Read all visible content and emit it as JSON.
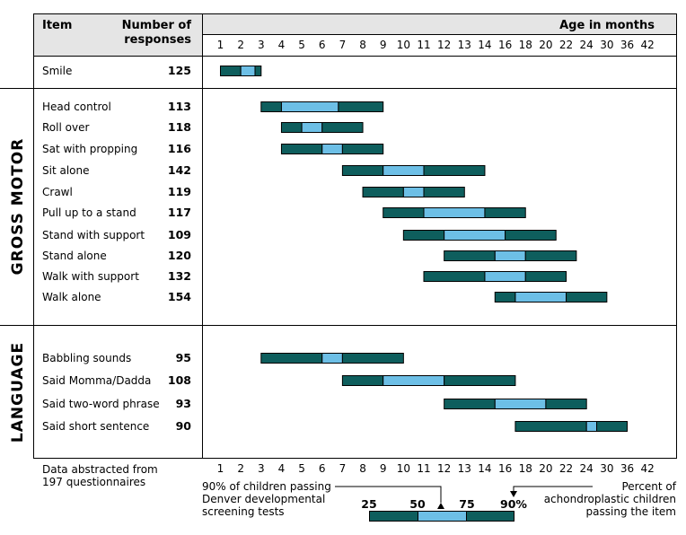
{
  "header": {
    "item": "Item",
    "responses_line1": "Number of",
    "responses_line2": "responses",
    "age": "Age in months"
  },
  "axis_ticks": [
    "1",
    "2",
    "3",
    "4",
    "5",
    "6",
    "7",
    "8",
    "9",
    "10",
    "11",
    "12",
    "13",
    "14",
    "16",
    "18",
    "20",
    "22",
    "24",
    "30",
    "36",
    "42"
  ],
  "sections": {
    "gross_motor": "GROSS MOTOR",
    "language": "LANGUAGE"
  },
  "colors": {
    "dark_bar": "#0e5e5d",
    "light_bar": "#6dbfe6",
    "header_bg": "#e5e5e5",
    "border": "#000000"
  },
  "chart_data": {
    "type": "bar",
    "title": "",
    "xlabel": "Age in months",
    "x_ticks": [
      "1",
      "2",
      "3",
      "4",
      "5",
      "6",
      "7",
      "8",
      "9",
      "10",
      "11",
      "12",
      "13",
      "14",
      "16",
      "18",
      "20",
      "22",
      "24",
      "30",
      "36",
      "42"
    ],
    "note": "Bars span the ages at which 25, 50, 75 and 90% of achondroplastic children pass the item",
    "groups": [
      {
        "name": "",
        "items": [
          {
            "item": "Smile",
            "n": "125",
            "p25": 1,
            "p50": 2,
            "p75": 2.7,
            "p90": 3
          }
        ]
      },
      {
        "name": "GROSS MOTOR",
        "items": [
          {
            "item": "Head control",
            "n": "113",
            "p25": 3,
            "p50": 4,
            "p75": 6.8,
            "p90": 9
          },
          {
            "item": "Roll over",
            "n": "118",
            "p25": 4,
            "p50": 5,
            "p75": 6,
            "p90": 8
          },
          {
            "item": "Sat with propping",
            "n": "116",
            "p25": 4,
            "p50": 6,
            "p75": 7,
            "p90": 9
          },
          {
            "item": "Sit alone",
            "n": "142",
            "p25": 7,
            "p50": 9,
            "p75": 11,
            "p90": 14
          },
          {
            "item": "Crawl",
            "n": "119",
            "p25": 8,
            "p50": 10,
            "p75": 11,
            "p90": 13
          },
          {
            "item": "Pull up to a stand",
            "n": "117",
            "p25": 9,
            "p50": 11,
            "p75": 14,
            "p90": 18
          },
          {
            "item": "Stand with support",
            "n": "109",
            "p25": 10,
            "p50": 12,
            "p75": 16,
            "p90": 21
          },
          {
            "item": "Stand alone",
            "n": "120",
            "p25": 12,
            "p50": 15,
            "p75": 18,
            "p90": 23
          },
          {
            "item": "Walk with support",
            "n": "132",
            "p25": 11,
            "p50": 14,
            "p75": 18,
            "p90": 22
          },
          {
            "item": "Walk alone",
            "n": "154",
            "p25": 15,
            "p50": 17,
            "p75": 22,
            "p90": 30
          }
        ]
      },
      {
        "name": "LANGUAGE",
        "items": [
          {
            "item": "Babbling sounds",
            "n": "95",
            "p25": 3,
            "p50": 6,
            "p75": 7,
            "p90": 10
          },
          {
            "item": "Said Momma/Dadda",
            "n": "108",
            "p25": 7,
            "p50": 9,
            "p75": 12,
            "p90": 17
          },
          {
            "item": "Said two-word phrase",
            "n": "93",
            "p25": 12,
            "p50": 15,
            "p75": 20,
            "p90": 24
          },
          {
            "item": "Said short sentence",
            "n": "90",
            "p25": 17,
            "p50": 24,
            "p75": 27,
            "p90": 36
          }
        ]
      }
    ]
  },
  "footer": {
    "source_line1": "Data abstracted from",
    "source_line2": "197 questionnaires",
    "denver_line1": "90% of children passing",
    "denver_line2": "Denver developmental",
    "denver_line3": "screening tests",
    "percent_line1": "Percent of",
    "percent_line2": "achondroplastic children",
    "percent_line3": "passing the item",
    "legend_labels": [
      "25",
      "50",
      "75",
      "90%"
    ]
  }
}
